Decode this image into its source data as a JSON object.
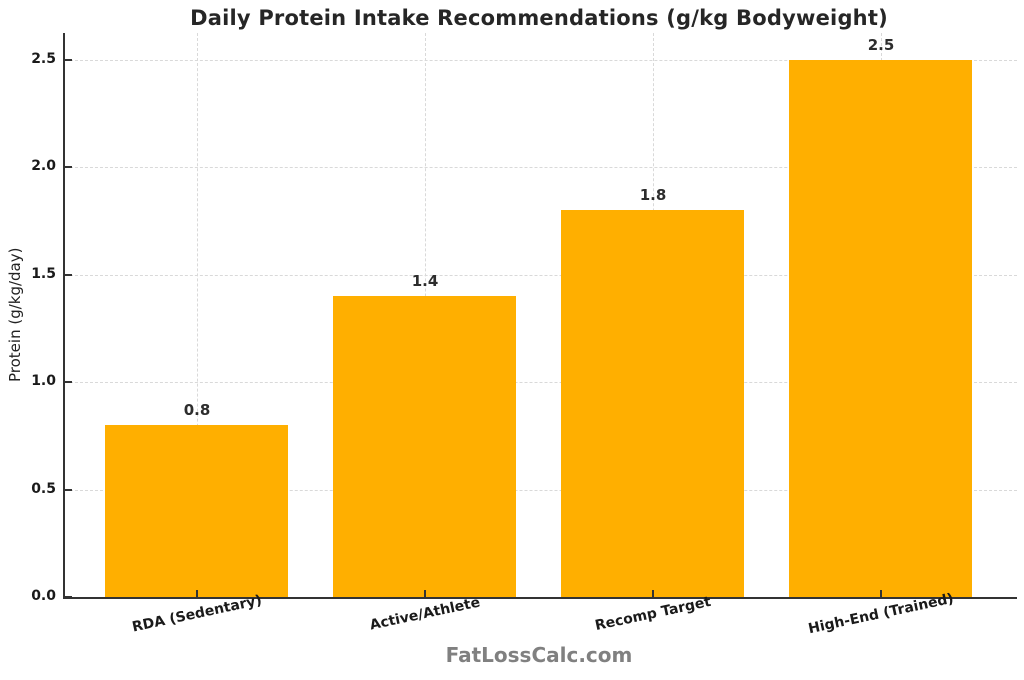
{
  "chart_data": {
    "type": "bar",
    "title": "Daily Protein Intake Recommendations (g/kg Bodyweight)",
    "categories": [
      "RDA (Sedentary)",
      "Active/Athlete",
      "Recomp Target",
      "High-End (Trained)"
    ],
    "values": [
      0.8,
      1.4,
      1.8,
      2.5
    ],
    "value_labels": [
      "0.8",
      "1.4",
      "1.8",
      "2.5"
    ],
    "xlabel": "",
    "ylabel": "Protein (g/kg/day)",
    "ylim": [
      0,
      2.625
    ],
    "yticks": [
      "0.0",
      "0.5",
      "1.0",
      "1.5",
      "2.0",
      "2.5"
    ],
    "grid": "dashed, both axes, light gray",
    "legend": "none",
    "bar_color": "#FFAF00",
    "footer": "FatLossCalc.com"
  },
  "colors": {
    "background": "#ffffff",
    "bar": "#FFAF00",
    "spine": "#333333",
    "gridline": "#d9d9d9",
    "title_text": "#262626",
    "tick_text": "#1a1a1a",
    "value_text": "#2d2d2d",
    "footer_text": "#808080"
  }
}
